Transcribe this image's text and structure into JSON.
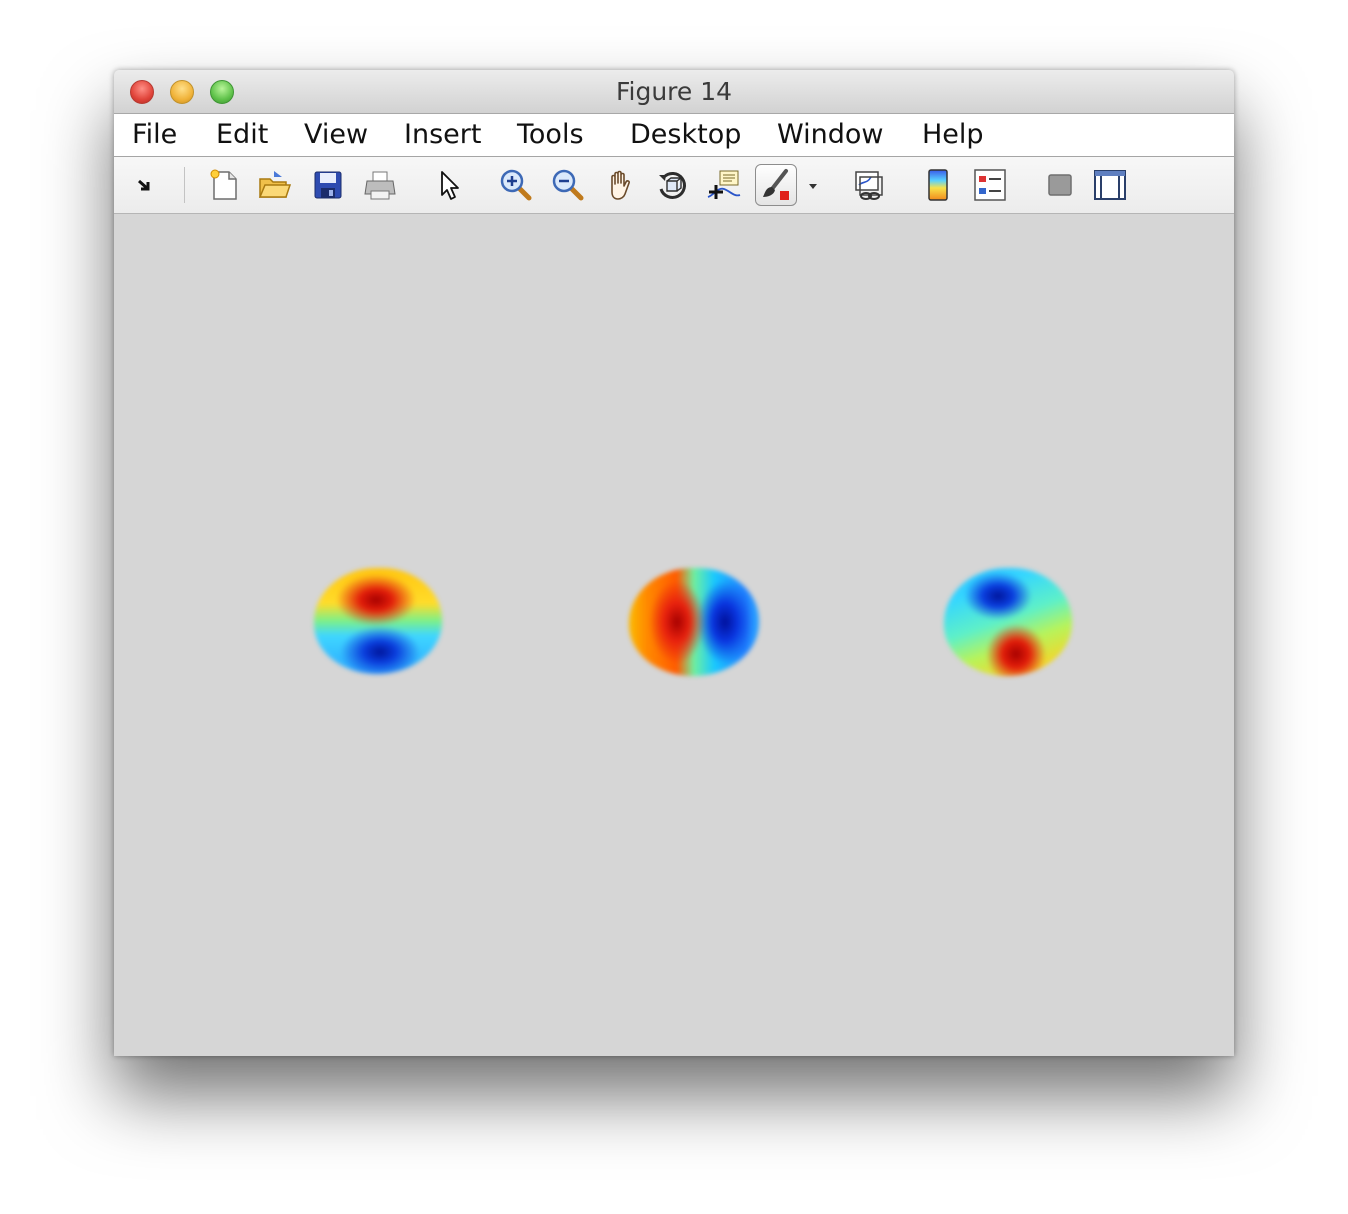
{
  "window": {
    "title": "Figure 14"
  },
  "menubar": {
    "items": [
      "File",
      "Edit",
      "View",
      "Insert",
      "Tools",
      "Desktop",
      "Window",
      "Help"
    ]
  },
  "toolbar": {
    "buttons": [
      {
        "icon": "dock-arrow-icon"
      },
      {
        "icon": "new-figure-icon"
      },
      {
        "icon": "open-file-icon"
      },
      {
        "icon": "save-icon"
      },
      {
        "icon": "print-icon"
      },
      {
        "icon": "edit-plot-pointer-icon"
      },
      {
        "icon": "zoom-in-icon"
      },
      {
        "icon": "zoom-out-icon"
      },
      {
        "icon": "pan-hand-icon"
      },
      {
        "icon": "rotate-3d-icon"
      },
      {
        "icon": "data-cursor-icon"
      },
      {
        "icon": "brush-icon",
        "active": true
      },
      {
        "icon": "dropdown-arrow-icon"
      },
      {
        "icon": "link-plot-icon"
      },
      {
        "icon": "colorbar-icon"
      },
      {
        "icon": "legend-icon"
      },
      {
        "icon": "hide-plot-tools-icon"
      },
      {
        "icon": "show-plot-tools-icon"
      }
    ]
  },
  "figure": {
    "colormap": "jet",
    "background": "#d6d6d6",
    "surfaces": [
      {
        "name": "left",
        "orientation": "red-top-blue-bottom"
      },
      {
        "name": "middle",
        "orientation": "red-left-blue-right"
      },
      {
        "name": "right",
        "orientation": "blue-top-red-bottom"
      }
    ]
  }
}
